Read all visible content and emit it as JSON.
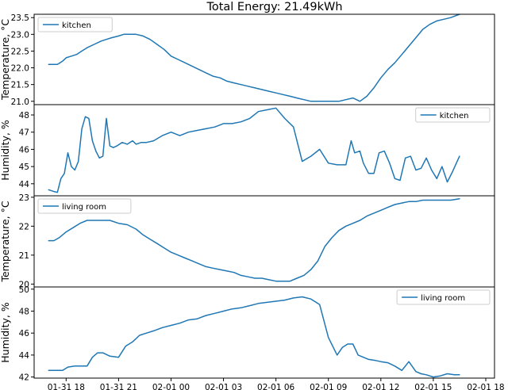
{
  "title": "Total Energy: 21.49kWh",
  "colors": {
    "series": "#1f77b4"
  },
  "x_ticks": [
    "01-31 18",
    "01-31 21",
    "02-01 00",
    "02-01 03",
    "02-01 06",
    "02-01 09",
    "02-01 12",
    "02-01 15",
    "02-01 18"
  ],
  "chart_data": [
    {
      "type": "line",
      "ylabel": "Temperature, °C",
      "ylim": [
        20.9,
        23.6
      ],
      "yticks": [
        "21.0",
        "21.5",
        "22.0",
        "22.5",
        "23.0",
        "23.5"
      ],
      "legend": "top-left",
      "series": [
        {
          "name": "kitchen",
          "x": [
            17.0,
            17.2,
            17.5,
            17.8,
            18.0,
            18.3,
            18.6,
            18.9,
            19.2,
            19.6,
            20.0,
            20.3,
            20.6,
            21.0,
            21.3,
            21.6,
            22.0,
            22.4,
            22.8,
            23.2,
            23.6,
            24.0,
            24.4,
            24.8,
            25.2,
            25.6,
            26.0,
            26.4,
            26.8,
            27.2,
            27.6,
            28.0,
            28.4,
            28.8,
            29.2,
            29.6,
            30.0,
            30.4,
            30.8,
            31.2,
            31.6,
            32.0,
            32.3,
            32.6,
            33.0,
            33.3,
            33.6,
            34.0,
            34.4,
            34.8,
            35.2,
            35.6,
            36.0,
            36.4,
            36.8,
            37.2,
            37.6,
            38.0,
            38.4,
            38.8,
            39.2,
            39.6,
            40.0,
            40.5
          ],
          "values": [
            22.1,
            22.1,
            22.1,
            22.2,
            22.3,
            22.35,
            22.4,
            22.5,
            22.6,
            22.7,
            22.8,
            22.85,
            22.9,
            22.95,
            23.0,
            23.0,
            23.0,
            22.95,
            22.85,
            22.7,
            22.55,
            22.35,
            22.25,
            22.15,
            22.05,
            21.95,
            21.85,
            21.75,
            21.7,
            21.6,
            21.55,
            21.5,
            21.45,
            21.4,
            21.35,
            21.3,
            21.25,
            21.2,
            21.15,
            21.1,
            21.05,
            21.0,
            21.0,
            21.0,
            21.0,
            21.0,
            21.0,
            21.05,
            21.1,
            21.0,
            21.15,
            21.4,
            21.7,
            21.95,
            22.15,
            22.4,
            22.65,
            22.9,
            23.15,
            23.3,
            23.4,
            23.45,
            23.5,
            23.6
          ]
        }
      ]
    },
    {
      "type": "line",
      "ylabel": "Humidity, %",
      "ylim": [
        43.3,
        48.6
      ],
      "yticks": [
        "44",
        "45",
        "46",
        "47",
        "48"
      ],
      "legend": "top-right",
      "series": [
        {
          "name": "kitchen",
          "x": [
            17.0,
            17.3,
            17.5,
            17.7,
            17.9,
            18.1,
            18.3,
            18.5,
            18.7,
            18.9,
            19.1,
            19.3,
            19.5,
            19.7,
            19.9,
            20.1,
            20.3,
            20.5,
            20.7,
            20.9,
            21.2,
            21.5,
            21.8,
            22.0,
            22.3,
            22.6,
            23.0,
            23.5,
            24.0,
            24.5,
            25.0,
            25.5,
            26.0,
            26.5,
            27.0,
            27.5,
            28.0,
            28.5,
            29.0,
            29.5,
            30.0,
            30.5,
            31.0,
            31.5,
            32.0,
            32.5,
            33.0,
            33.5,
            34.0,
            34.3,
            34.5,
            34.8,
            35.0,
            35.3,
            35.6,
            35.9,
            36.2,
            36.5,
            36.8,
            37.1,
            37.4,
            37.7,
            38.0,
            38.3,
            38.6,
            38.9,
            39.2,
            39.5,
            39.8,
            40.1,
            40.5
          ],
          "values": [
            43.65,
            43.55,
            43.5,
            44.3,
            44.6,
            45.8,
            45.0,
            44.8,
            45.3,
            47.2,
            47.9,
            47.8,
            46.5,
            45.9,
            45.5,
            45.6,
            47.8,
            46.2,
            46.1,
            46.2,
            46.4,
            46.3,
            46.5,
            46.3,
            46.4,
            46.4,
            46.5,
            46.8,
            47.0,
            46.8,
            47.0,
            47.1,
            47.2,
            47.3,
            47.5,
            47.5,
            47.6,
            47.8,
            48.2,
            48.3,
            48.4,
            47.8,
            47.3,
            45.3,
            45.6,
            46.0,
            45.2,
            45.1,
            45.1,
            46.5,
            45.8,
            45.9,
            45.2,
            44.6,
            44.6,
            45.8,
            45.9,
            45.2,
            44.3,
            44.2,
            45.5,
            45.6,
            44.8,
            44.9,
            45.5,
            44.8,
            44.3,
            45.0,
            44.1,
            44.7,
            45.6
          ]
        }
      ]
    },
    {
      "type": "line",
      "ylabel": "Temperature, °C",
      "ylim": [
        19.9,
        23.05
      ],
      "yticks": [
        "20",
        "21",
        "22",
        "23"
      ],
      "legend": "top-left",
      "series": [
        {
          "name": "living room",
          "x": [
            17.0,
            17.3,
            17.6,
            18.0,
            18.4,
            18.8,
            19.2,
            19.6,
            20.0,
            20.5,
            21.0,
            21.5,
            22.0,
            22.4,
            22.8,
            23.2,
            23.6,
            24.0,
            24.4,
            24.8,
            25.2,
            25.6,
            26.0,
            26.4,
            26.8,
            27.2,
            27.6,
            28.0,
            28.4,
            28.8,
            29.2,
            29.6,
            30.0,
            30.4,
            30.8,
            31.2,
            31.6,
            32.0,
            32.4,
            32.8,
            33.2,
            33.6,
            34.0,
            34.4,
            34.8,
            35.2,
            35.6,
            36.0,
            36.4,
            36.8,
            37.2,
            37.6,
            38.0,
            38.4,
            38.8,
            39.2,
            39.6,
            40.0,
            40.5
          ],
          "values": [
            21.5,
            21.5,
            21.6,
            21.8,
            21.95,
            22.1,
            22.2,
            22.2,
            22.2,
            22.2,
            22.1,
            22.05,
            21.9,
            21.7,
            21.55,
            21.4,
            21.25,
            21.1,
            21.0,
            20.9,
            20.8,
            20.7,
            20.6,
            20.55,
            20.5,
            20.45,
            20.4,
            20.3,
            20.25,
            20.2,
            20.2,
            20.15,
            20.1,
            20.1,
            20.1,
            20.2,
            20.3,
            20.5,
            20.8,
            21.3,
            21.6,
            21.85,
            22.0,
            22.1,
            22.2,
            22.35,
            22.45,
            22.55,
            22.65,
            22.75,
            22.8,
            22.85,
            22.85,
            22.9,
            22.9,
            22.9,
            22.9,
            22.9,
            22.95
          ]
        }
      ]
    },
    {
      "type": "line",
      "ylabel": "Humidity, %",
      "ylim": [
        41.9,
        50.2
      ],
      "yticks": [
        "42",
        "44",
        "46",
        "48",
        "50"
      ],
      "legend": "top-right",
      "series": [
        {
          "name": "living room",
          "x": [
            17.0,
            17.4,
            17.8,
            18.1,
            18.5,
            18.9,
            19.2,
            19.5,
            19.8,
            20.1,
            20.5,
            21.0,
            21.4,
            21.8,
            22.2,
            22.6,
            23.0,
            23.5,
            24.0,
            24.5,
            25.0,
            25.5,
            26.0,
            26.5,
            27.0,
            27.5,
            28.0,
            28.5,
            29.0,
            29.5,
            30.0,
            30.5,
            31.0,
            31.5,
            32.0,
            32.5,
            33.0,
            33.5,
            33.8,
            34.1,
            34.4,
            34.7,
            35.0,
            35.3,
            35.7,
            36.0,
            36.4,
            36.8,
            37.2,
            37.6,
            38.0,
            38.3,
            38.6,
            39.0,
            39.4,
            39.8,
            40.2,
            40.5
          ],
          "values": [
            42.6,
            42.6,
            42.6,
            42.9,
            43.0,
            43.0,
            43.0,
            43.8,
            44.2,
            44.2,
            43.9,
            43.8,
            44.8,
            45.2,
            45.8,
            46.0,
            46.2,
            46.5,
            46.7,
            46.9,
            47.2,
            47.3,
            47.6,
            47.8,
            48.0,
            48.2,
            48.3,
            48.5,
            48.7,
            48.8,
            48.9,
            49.0,
            49.2,
            49.3,
            49.1,
            48.6,
            45.6,
            44.0,
            44.7,
            45.0,
            45.0,
            44.0,
            43.8,
            43.6,
            43.5,
            43.4,
            43.3,
            43.0,
            42.6,
            43.4,
            42.5,
            42.3,
            42.2,
            42.0,
            42.1,
            42.3,
            42.2,
            42.2
          ]
        }
      ]
    }
  ]
}
